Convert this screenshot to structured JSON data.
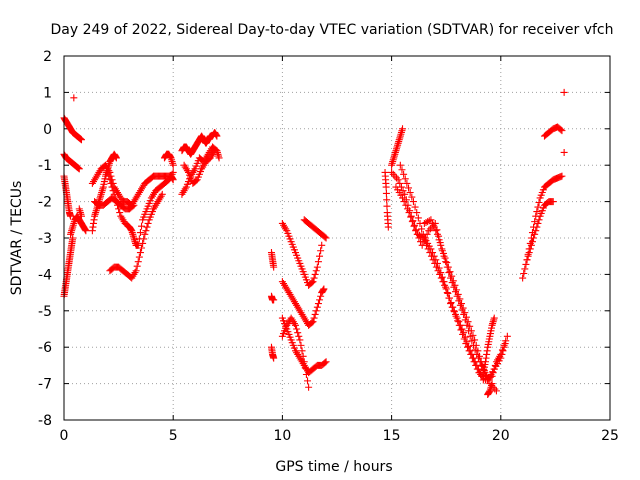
{
  "chart_data": {
    "type": "scatter",
    "title": "Day 249 of 2022, Sidereal Day-to-day VTEC variation (SDTVAR) for receiver vfch",
    "xlabel": "GPS time / hours",
    "ylabel": "SDTVAR / TECUs",
    "xlim": [
      0,
      25
    ],
    "ylim": [
      -8,
      2
    ],
    "xticks": [
      "0",
      "5",
      "10",
      "15",
      "20",
      "25"
    ],
    "yticks": [
      "2",
      "1",
      "0",
      "-1",
      "-2",
      "-3",
      "-4",
      "-5",
      "-6",
      "-7",
      "-8"
    ],
    "grid": true,
    "marker": "plus",
    "marker_color": "#ff0000",
    "legend": "none",
    "segments": [
      {
        "x": [
          0.0,
          0.1,
          0.2,
          0.3,
          0.4,
          0.5,
          0.6,
          0.7,
          0.8
        ],
        "y": [
          0.3,
          0.2,
          0.1,
          0.0,
          -0.1,
          -0.15,
          -0.2,
          -0.25,
          -0.3
        ]
      },
      {
        "x": [
          0.45
        ],
        "y": [
          0.85
        ]
      },
      {
        "x": [
          0.0,
          0.1,
          0.2,
          0.3,
          0.4,
          0.5,
          0.6,
          0.7
        ],
        "y": [
          -0.7,
          -0.8,
          -0.85,
          -0.9,
          -0.95,
          -1.0,
          -1.05,
          -1.1
        ]
      },
      {
        "x": [
          0.0,
          0.05,
          0.1,
          0.15,
          0.2,
          0.25,
          0.3
        ],
        "y": [
          -1.3,
          -1.5,
          -1.7,
          -1.9,
          -2.1,
          -2.3,
          -2.4
        ]
      },
      {
        "x": [
          0.0,
          0.05,
          0.1,
          0.15,
          0.2,
          0.25,
          0.3,
          0.35,
          0.4
        ],
        "y": [
          -4.6,
          -4.4,
          -4.2,
          -4.0,
          -3.8,
          -3.6,
          -3.4,
          -3.2,
          -3.0
        ]
      },
      {
        "x": [
          0.3,
          0.4,
          0.5,
          0.6,
          0.7,
          0.8,
          0.9,
          1.0
        ],
        "y": [
          -2.9,
          -2.7,
          -2.5,
          -2.4,
          -2.5,
          -2.6,
          -2.7,
          -2.8
        ]
      },
      {
        "x": [
          0.7,
          0.8
        ],
        "y": [
          -2.2,
          -2.4
        ]
      },
      {
        "x": [
          1.3,
          1.4,
          1.5,
          1.6,
          1.7,
          1.8,
          1.9,
          2.0,
          2.1,
          2.2,
          2.3,
          2.4
        ],
        "y": [
          -2.8,
          -2.4,
          -2.2,
          -2.0,
          -1.8,
          -1.6,
          -1.3,
          -1.1,
          -0.9,
          -0.8,
          -0.7,
          -0.8
        ]
      },
      {
        "x": [
          1.3,
          1.5,
          1.7,
          1.9,
          2.1,
          2.3,
          2.5,
          2.7,
          2.9,
          3.1,
          3.3,
          3.5,
          3.7,
          3.9,
          4.1,
          4.3,
          4.5,
          4.7,
          4.9,
          5.0
        ],
        "y": [
          -1.5,
          -1.3,
          -1.1,
          -1.0,
          -1.2,
          -1.6,
          -1.8,
          -2.0,
          -2.0,
          -2.1,
          -1.9,
          -1.7,
          -1.5,
          -1.4,
          -1.3,
          -1.3,
          -1.3,
          -1.3,
          -1.3,
          -1.4
        ]
      },
      {
        "x": [
          1.4,
          1.6,
          1.8,
          2.0,
          2.2,
          2.4,
          2.6,
          2.8,
          3.0,
          3.2
        ],
        "y": [
          -2.0,
          -2.1,
          -2.1,
          -2.0,
          -1.9,
          -2.0,
          -2.1,
          -2.2,
          -2.2,
          -2.1
        ]
      },
      {
        "x": [
          2.0,
          2.2,
          2.4,
          2.6,
          2.8,
          3.0,
          3.1,
          3.2,
          3.3,
          3.4,
          3.6,
          3.8,
          4.0,
          4.2,
          4.4,
          4.6,
          4.8,
          5.0
        ],
        "y": [
          -1.2,
          -1.6,
          -2.0,
          -2.4,
          -2.6,
          -2.7,
          -2.8,
          -3.0,
          -3.2,
          -3.2,
          -2.5,
          -2.2,
          -1.9,
          -1.7,
          -1.6,
          -1.5,
          -1.4,
          -1.2
        ]
      },
      {
        "x": [
          2.1,
          2.3,
          2.5,
          2.7,
          2.9,
          3.1,
          3.3,
          3.5,
          3.7,
          3.9,
          4.1,
          4.3,
          4.5
        ],
        "y": [
          -3.9,
          -3.8,
          -3.8,
          -3.9,
          -4.0,
          -4.1,
          -3.9,
          -3.4,
          -2.9,
          -2.5,
          -2.2,
          -2.0,
          -1.8
        ]
      },
      {
        "x": [
          4.6,
          4.7,
          4.8,
          4.9,
          5.0
        ],
        "y": [
          -0.8,
          -0.7,
          -0.7,
          -0.8,
          -1.0
        ]
      },
      {
        "x": [
          5.4,
          5.5,
          5.6,
          5.7,
          5.8,
          5.9,
          6.0,
          6.1,
          6.2,
          6.3,
          6.4,
          6.5,
          6.6,
          6.7,
          6.8,
          6.9,
          7.0
        ],
        "y": [
          -0.6,
          -0.5,
          -0.5,
          -0.6,
          -0.7,
          -0.6,
          -0.5,
          -0.4,
          -0.3,
          -0.2,
          -0.3,
          -0.4,
          -0.3,
          -0.2,
          -0.2,
          -0.1,
          -0.2
        ]
      },
      {
        "x": [
          5.4,
          5.6,
          5.8,
          6.0,
          6.2,
          6.4,
          6.6,
          6.8,
          7.0,
          7.1
        ],
        "y": [
          -1.8,
          -1.6,
          -1.3,
          -1.1,
          -0.8,
          -0.9,
          -0.7,
          -0.5,
          -0.6,
          -0.8
        ]
      },
      {
        "x": [
          5.5,
          5.7,
          5.9,
          6.1,
          6.3,
          6.5,
          6.7,
          6.9
        ],
        "y": [
          -1.0,
          -1.2,
          -1.5,
          -1.4,
          -1.1,
          -0.9,
          -0.8,
          -0.6
        ]
      },
      {
        "x": [
          9.5,
          9.55,
          9.6
        ],
        "y": [
          -3.4,
          -3.6,
          -3.8
        ]
      },
      {
        "x": [
          9.5,
          9.55,
          9.6
        ],
        "y": [
          -4.6,
          -4.7,
          -4.7
        ]
      },
      {
        "x": [
          9.5,
          9.55,
          9.6
        ],
        "y": [
          -6.0,
          -6.2,
          -6.3
        ]
      },
      {
        "x": [
          10.0,
          10.2,
          10.4,
          10.6,
          10.8,
          11.0,
          11.2,
          11.4,
          11.6,
          11.8
        ],
        "y": [
          -2.6,
          -2.8,
          -3.1,
          -3.4,
          -3.7,
          -4.0,
          -4.3,
          -4.2,
          -3.8,
          -3.2
        ]
      },
      {
        "x": [
          10.0,
          10.2,
          10.4,
          10.6,
          10.8,
          11.0,
          11.2,
          11.4,
          11.6,
          11.8,
          11.9
        ],
        "y": [
          -4.2,
          -4.4,
          -4.6,
          -4.8,
          -5.0,
          -5.2,
          -5.4,
          -5.3,
          -4.9,
          -4.5,
          -4.4
        ]
      },
      {
        "x": [
          10.0,
          10.2,
          10.4,
          10.6,
          10.8,
          11.0,
          11.2,
          11.4,
          11.6,
          11.8,
          12.0
        ],
        "y": [
          -5.2,
          -5.5,
          -5.8,
          -6.1,
          -6.3,
          -6.5,
          -6.7,
          -6.6,
          -6.5,
          -6.5,
          -6.4
        ]
      },
      {
        "x": [
          10.0,
          10.2,
          10.4,
          10.6,
          10.8,
          11.0,
          11.2
        ],
        "y": [
          -5.7,
          -5.4,
          -5.2,
          -5.4,
          -5.8,
          -6.4,
          -7.1
        ]
      },
      {
        "x": [
          11.0,
          11.2,
          11.4,
          11.6,
          11.8,
          12.0
        ],
        "y": [
          -2.5,
          -2.6,
          -2.7,
          -2.8,
          -2.9,
          -3.0
        ]
      },
      {
        "x": [
          14.7,
          14.75,
          14.8,
          14.85
        ],
        "y": [
          -1.2,
          -1.6,
          -2.3,
          -2.7
        ]
      },
      {
        "x": [
          15.0,
          15.1,
          15.2,
          15.3,
          15.4,
          15.5
        ],
        "y": [
          -1.0,
          -0.8,
          -0.6,
          -0.4,
          -0.2,
          0.0
        ]
      },
      {
        "x": [
          15.0,
          15.3,
          15.6,
          15.9,
          16.2,
          16.5,
          16.8,
          17.1,
          17.4,
          17.7,
          18.0,
          18.3,
          18.6,
          18.9,
          19.2
        ],
        "y": [
          -1.2,
          -1.4,
          -1.8,
          -2.4,
          -2.9,
          -3.0,
          -3.3,
          -3.7,
          -4.2,
          -4.8,
          -5.2,
          -5.6,
          -6.1,
          -6.5,
          -6.9
        ]
      },
      {
        "x": [
          15.2,
          15.5,
          15.8,
          16.1,
          16.4,
          16.7,
          17.0,
          17.3,
          17.6,
          17.9,
          18.2,
          18.5,
          18.8,
          19.1,
          19.4,
          19.7,
          20.0,
          20.2
        ],
        "y": [
          -1.6,
          -1.9,
          -2.3,
          -2.8,
          -3.2,
          -2.8,
          -2.6,
          -3.3,
          -3.8,
          -4.3,
          -4.8,
          -5.3,
          -5.8,
          -6.4,
          -6.9,
          -6.6,
          -6.3,
          -5.9
        ]
      },
      {
        "x": [
          15.4,
          15.7,
          16.0,
          16.3,
          16.6,
          16.9,
          17.2,
          17.5,
          17.8,
          18.1,
          18.4,
          18.7,
          19.0,
          19.3,
          19.6,
          19.8,
          20.0,
          20.3
        ],
        "y": [
          -1.0,
          -1.5,
          -2.0,
          -2.6,
          -3.2,
          -3.6,
          -4.0,
          -4.4,
          -4.9,
          -5.4,
          -5.9,
          -6.3,
          -6.7,
          -6.9,
          -6.8,
          -6.4,
          -6.2,
          -5.7
        ]
      },
      {
        "x": [
          16.5,
          16.8,
          17.1,
          17.4,
          17.7,
          18.0,
          18.3,
          18.6,
          18.9,
          19.2,
          19.5,
          19.8
        ],
        "y": [
          -2.6,
          -2.5,
          -2.9,
          -3.5,
          -4.1,
          -4.6,
          -5.1,
          -5.7,
          -6.2,
          -6.6,
          -7.0,
          -7.2
        ]
      },
      {
        "x": [
          19.2,
          19.3,
          19.4,
          19.5,
          19.6,
          19.7
        ],
        "y": [
          -6.7,
          -6.4,
          -6.0,
          -5.7,
          -5.4,
          -5.2
        ]
      },
      {
        "x": [
          19.4,
          19.5,
          19.6
        ],
        "y": [
          -7.3,
          -7.2,
          -7.0
        ]
      },
      {
        "x": [
          21.0,
          21.2,
          21.4,
          21.6,
          21.8,
          22.0,
          22.2,
          22.4,
          22.6,
          22.8
        ],
        "y": [
          -4.1,
          -3.6,
          -3.0,
          -2.4,
          -1.9,
          -1.6,
          -1.5,
          -1.4,
          -1.35,
          -1.3
        ]
      },
      {
        "x": [
          21.2,
          21.4,
          21.6,
          21.8,
          22.0,
          22.2,
          22.4
        ],
        "y": [
          -3.6,
          -3.2,
          -2.8,
          -2.4,
          -2.1,
          -2.0,
          -2.0
        ]
      },
      {
        "x": [
          22.0,
          22.2,
          22.4,
          22.6,
          22.8
        ],
        "y": [
          -0.2,
          -0.1,
          0.0,
          0.05,
          -0.05
        ]
      },
      {
        "x": [
          22.9
        ],
        "y": [
          -0.65
        ]
      },
      {
        "x": [
          22.9
        ],
        "y": [
          1.0
        ]
      }
    ]
  }
}
